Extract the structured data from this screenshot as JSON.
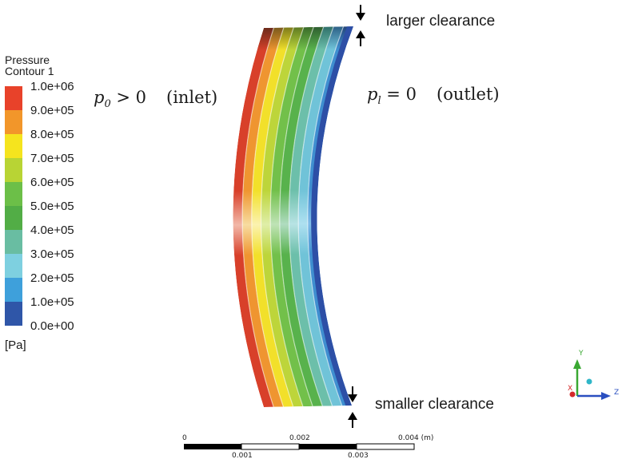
{
  "legend": {
    "title_line1": "Pressure",
    "title_line2": "Contour 1",
    "unit": "[Pa]",
    "ticks": [
      "1.0e+06",
      "9.0e+05",
      "8.0e+05",
      "7.0e+05",
      "6.0e+05",
      "5.0e+05",
      "4.0e+05",
      "3.0e+05",
      "2.0e+05",
      "1.0e+05",
      "0.0e+00"
    ],
    "colors": [
      "#e8422a",
      "#f2962a",
      "#f5e41e",
      "#b8d434",
      "#6cbf48",
      "#52ad46",
      "#69bda2",
      "#7ed0e0",
      "#3ea0db",
      "#2f56a8"
    ]
  },
  "labels": {
    "inlet_symbol": "p",
    "inlet_subscript": "0",
    "inlet_relation": " > 0",
    "inlet_text": "(inlet)",
    "outlet_symbol": "p",
    "outlet_subscript": "l",
    "outlet_relation": " = 0",
    "outlet_text": "(outlet)",
    "larger_clearance": "larger clearance",
    "smaller_clearance": "smaller clearance"
  },
  "scale_bar": {
    "top_labels": [
      "0",
      "0.002",
      "0.004 (m)"
    ],
    "bottom_labels": [
      "0.001",
      "0.003"
    ]
  },
  "axes": {
    "y": "Y",
    "x": "X",
    "z": "Z",
    "colors": {
      "y": "#3aa832",
      "z": "#2a4fc0",
      "x": "#d42a2a"
    }
  }
}
